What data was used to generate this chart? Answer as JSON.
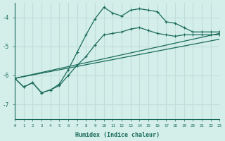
{
  "xlabel": "Humidex (Indice chaleur)",
  "xlim": [
    0,
    23
  ],
  "ylim": [
    -7.5,
    -3.5
  ],
  "yticks": [
    -7,
    -6,
    -5,
    -4
  ],
  "xticks": [
    0,
    1,
    2,
    3,
    4,
    5,
    6,
    7,
    8,
    9,
    10,
    11,
    12,
    13,
    14,
    15,
    16,
    17,
    18,
    19,
    20,
    21,
    22,
    23
  ],
  "bg_color": "#d4eeea",
  "grid_color": "#c0ddd8",
  "line_color": "#1a6b5a",
  "line1_x": [
    0,
    1,
    2,
    3,
    4,
    5,
    6,
    7,
    8,
    9,
    10,
    11,
    12,
    13,
    14,
    15,
    16,
    17,
    18,
    19,
    20,
    21,
    22,
    23
  ],
  "line1_y": [
    -6.1,
    -6.4,
    -6.25,
    -6.6,
    -6.5,
    -6.3,
    -5.8,
    -5.2,
    -4.6,
    -4.05,
    -3.65,
    -3.85,
    -3.95,
    -3.75,
    -3.7,
    -3.75,
    -3.8,
    -4.15,
    -4.2,
    -4.35,
    -4.5,
    -4.5,
    -4.5,
    -4.5
  ],
  "line2_x": [
    0,
    1,
    2,
    3,
    4,
    5,
    6,
    7,
    8,
    9,
    10,
    11,
    12,
    13,
    14,
    15,
    16,
    17,
    18,
    19,
    20,
    21,
    22,
    23
  ],
  "line2_y": [
    -6.1,
    -6.4,
    -6.25,
    -6.6,
    -6.5,
    -6.35,
    -6.0,
    -5.65,
    -5.35,
    -4.95,
    -4.6,
    -4.55,
    -4.5,
    -4.4,
    -4.35,
    -4.45,
    -4.55,
    -4.6,
    -4.65,
    -4.6,
    -4.6,
    -4.6,
    -4.6,
    -4.6
  ],
  "line3_x": [
    0,
    23
  ],
  "line3_y": [
    -6.1,
    -4.55
  ],
  "line4_x": [
    0,
    23
  ],
  "line4_y": [
    -6.1,
    -4.75
  ]
}
